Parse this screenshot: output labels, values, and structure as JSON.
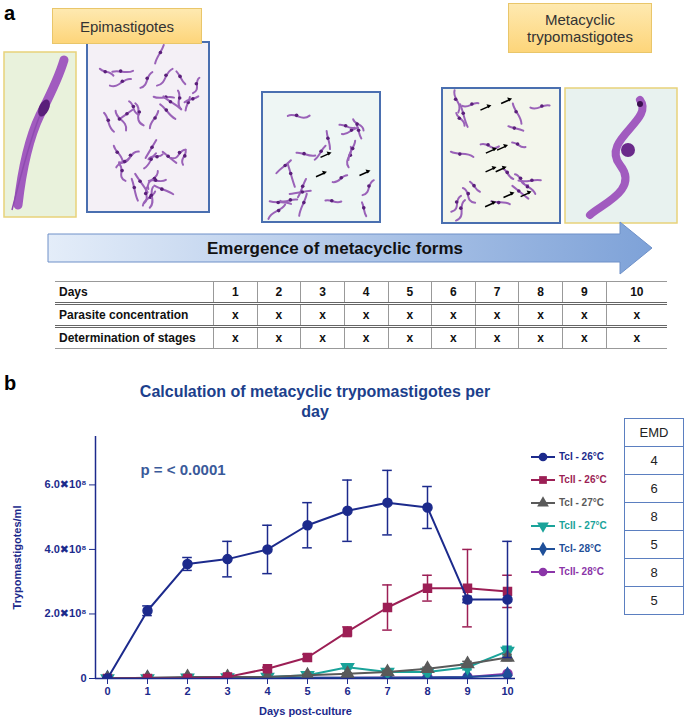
{
  "panel_a": {
    "label": "a",
    "left_label": "Epimastigotes",
    "right_label": "Metacyclic trypomastigotes",
    "arrow_text": "Emergence of metacyclic forms",
    "table": {
      "header": [
        "Days",
        1,
        2,
        3,
        4,
        5,
        6,
        7,
        8,
        9,
        10
      ],
      "rows": [
        [
          "Parasite concentration",
          "x",
          "x",
          "x",
          "x",
          "x",
          "x",
          "x",
          "x",
          "x",
          "x"
        ],
        [
          "Determination of stages",
          "x",
          "x",
          "x",
          "x",
          "x",
          "x",
          "x",
          "x",
          "x",
          "x"
        ]
      ]
    }
  },
  "chart_data": {
    "type": "line",
    "panel_label": "b",
    "title": "Calculation of metacyclic trypomastigotes per day",
    "x_label": "Days post-culture",
    "y_label": "Trypomastigotes/ml",
    "annotations": [
      "p = < 0.0001"
    ],
    "xlim": [
      -0.3,
      10.2
    ],
    "xticks": [
      0,
      1,
      2,
      3,
      4,
      5,
      6,
      7,
      8,
      9,
      10
    ],
    "ylim": [
      0,
      750000000
    ],
    "yticks": [
      0,
      {
        "value": 200000000,
        "label": "2.0✖10⁸"
      },
      {
        "value": 400000000,
        "label": "4.0✖10⁸"
      },
      {
        "value": 600000000,
        "label": "6.0✖10⁸"
      }
    ],
    "grid": false,
    "legend": "right",
    "x": [
      0,
      1,
      2,
      3,
      4,
      5,
      6,
      7,
      8,
      9,
      10
    ],
    "series": [
      {
        "name": "TcI - 26°C",
        "color": "#1c2a8c",
        "marker": "circle",
        "values": [
          0,
          210000000,
          355000000,
          370000000,
          400000000,
          475000000,
          520000000,
          545000000,
          530000000,
          245000000,
          245000000
        ],
        "errors": [
          0,
          15000000,
          20000000,
          55000000,
          75000000,
          70000000,
          95000000,
          100000000,
          65000000,
          10000000,
          180000000
        ]
      },
      {
        "name": "TcII - 26°C",
        "color": "#9c1f55",
        "marker": "square",
        "values": [
          0,
          0,
          0,
          5000000,
          30000000,
          65000000,
          145000000,
          220000000,
          280000000,
          280000000,
          270000000
        ],
        "errors": [
          0,
          0,
          0,
          3000000,
          5000000,
          10000000,
          15000000,
          70000000,
          40000000,
          120000000,
          50000000
        ]
      },
      {
        "name": "TcI - 27°C",
        "color": "#5a5a5a",
        "marker": "triangle-up",
        "values": [
          0,
          2000000,
          5000000,
          5000000,
          5000000,
          10000000,
          15000000,
          20000000,
          30000000,
          45000000,
          65000000
        ],
        "errors": [
          0,
          0,
          0,
          0,
          0,
          3000000,
          3000000,
          5000000,
          5000000,
          8000000,
          10000000
        ]
      },
      {
        "name": "TcII - 27°C",
        "color": "#1aa39a",
        "marker": "triangle-down",
        "values": [
          0,
          0,
          2000000,
          3000000,
          5000000,
          10000000,
          35000000,
          20000000,
          20000000,
          35000000,
          85000000
        ],
        "errors": [
          0,
          0,
          0,
          0,
          0,
          3000000,
          5000000,
          5000000,
          5000000,
          8000000,
          15000000
        ]
      },
      {
        "name": "TcI- 28°C",
        "color": "#1f4f99",
        "marker": "diamond",
        "values": [
          0,
          0,
          0,
          1000000,
          1000000,
          2000000,
          2000000,
          2000000,
          3000000,
          5000000,
          10000000
        ],
        "errors": [
          0,
          0,
          0,
          0,
          0,
          0,
          0,
          0,
          0,
          0,
          0
        ]
      },
      {
        "name": "TcII- 28°C",
        "color": "#8b35a8",
        "marker": "circle",
        "values": [
          0,
          0,
          0,
          1000000,
          1000000,
          2000000,
          2000000,
          3000000,
          3000000,
          5000000,
          15000000
        ],
        "errors": [
          0,
          0,
          0,
          0,
          0,
          0,
          0,
          0,
          0,
          0,
          0
        ]
      }
    ]
  },
  "emd_table": {
    "header": "EMD",
    "values": [
      4,
      6,
      8,
      5,
      8,
      5
    ]
  }
}
